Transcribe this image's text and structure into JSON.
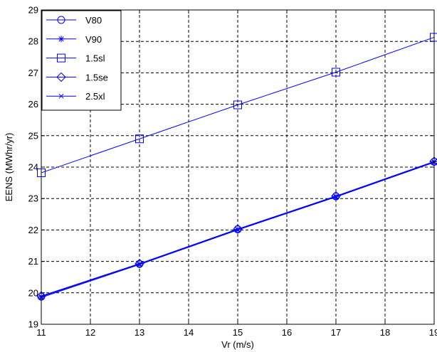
{
  "chart_data": {
    "type": "line",
    "xlabel": "Vr (m/s)",
    "ylabel": "EENS (MWhr/yr)",
    "xlim": [
      11,
      19
    ],
    "ylim": [
      19,
      29
    ],
    "x_ticks": [
      11,
      12,
      13,
      14,
      15,
      16,
      17,
      18,
      19
    ],
    "y_ticks": [
      19,
      20,
      21,
      22,
      23,
      24,
      25,
      26,
      27,
      28,
      29
    ],
    "grid": true,
    "grid_style": "dashed",
    "legend_position": "top-left",
    "line_color": "#0000ff",
    "x": [
      11,
      13,
      15,
      17,
      19
    ],
    "series": [
      {
        "name": "V80",
        "marker": "circle",
        "values": [
          19.88,
          20.92,
          22.02,
          23.07,
          24.17
        ]
      },
      {
        "name": "V90",
        "marker": "asterisk",
        "values": [
          19.88,
          20.92,
          22.02,
          23.07,
          24.17
        ]
      },
      {
        "name": "1.5sl",
        "marker": "square",
        "values": [
          23.82,
          24.9,
          25.98,
          27.02,
          28.13
        ]
      },
      {
        "name": "1.5se",
        "marker": "diamond",
        "values": [
          19.9,
          20.93,
          22.03,
          23.08,
          24.18
        ]
      },
      {
        "name": "2.5xl",
        "marker": "cross",
        "values": [
          19.85,
          20.9,
          22.0,
          23.05,
          24.15
        ]
      }
    ]
  }
}
